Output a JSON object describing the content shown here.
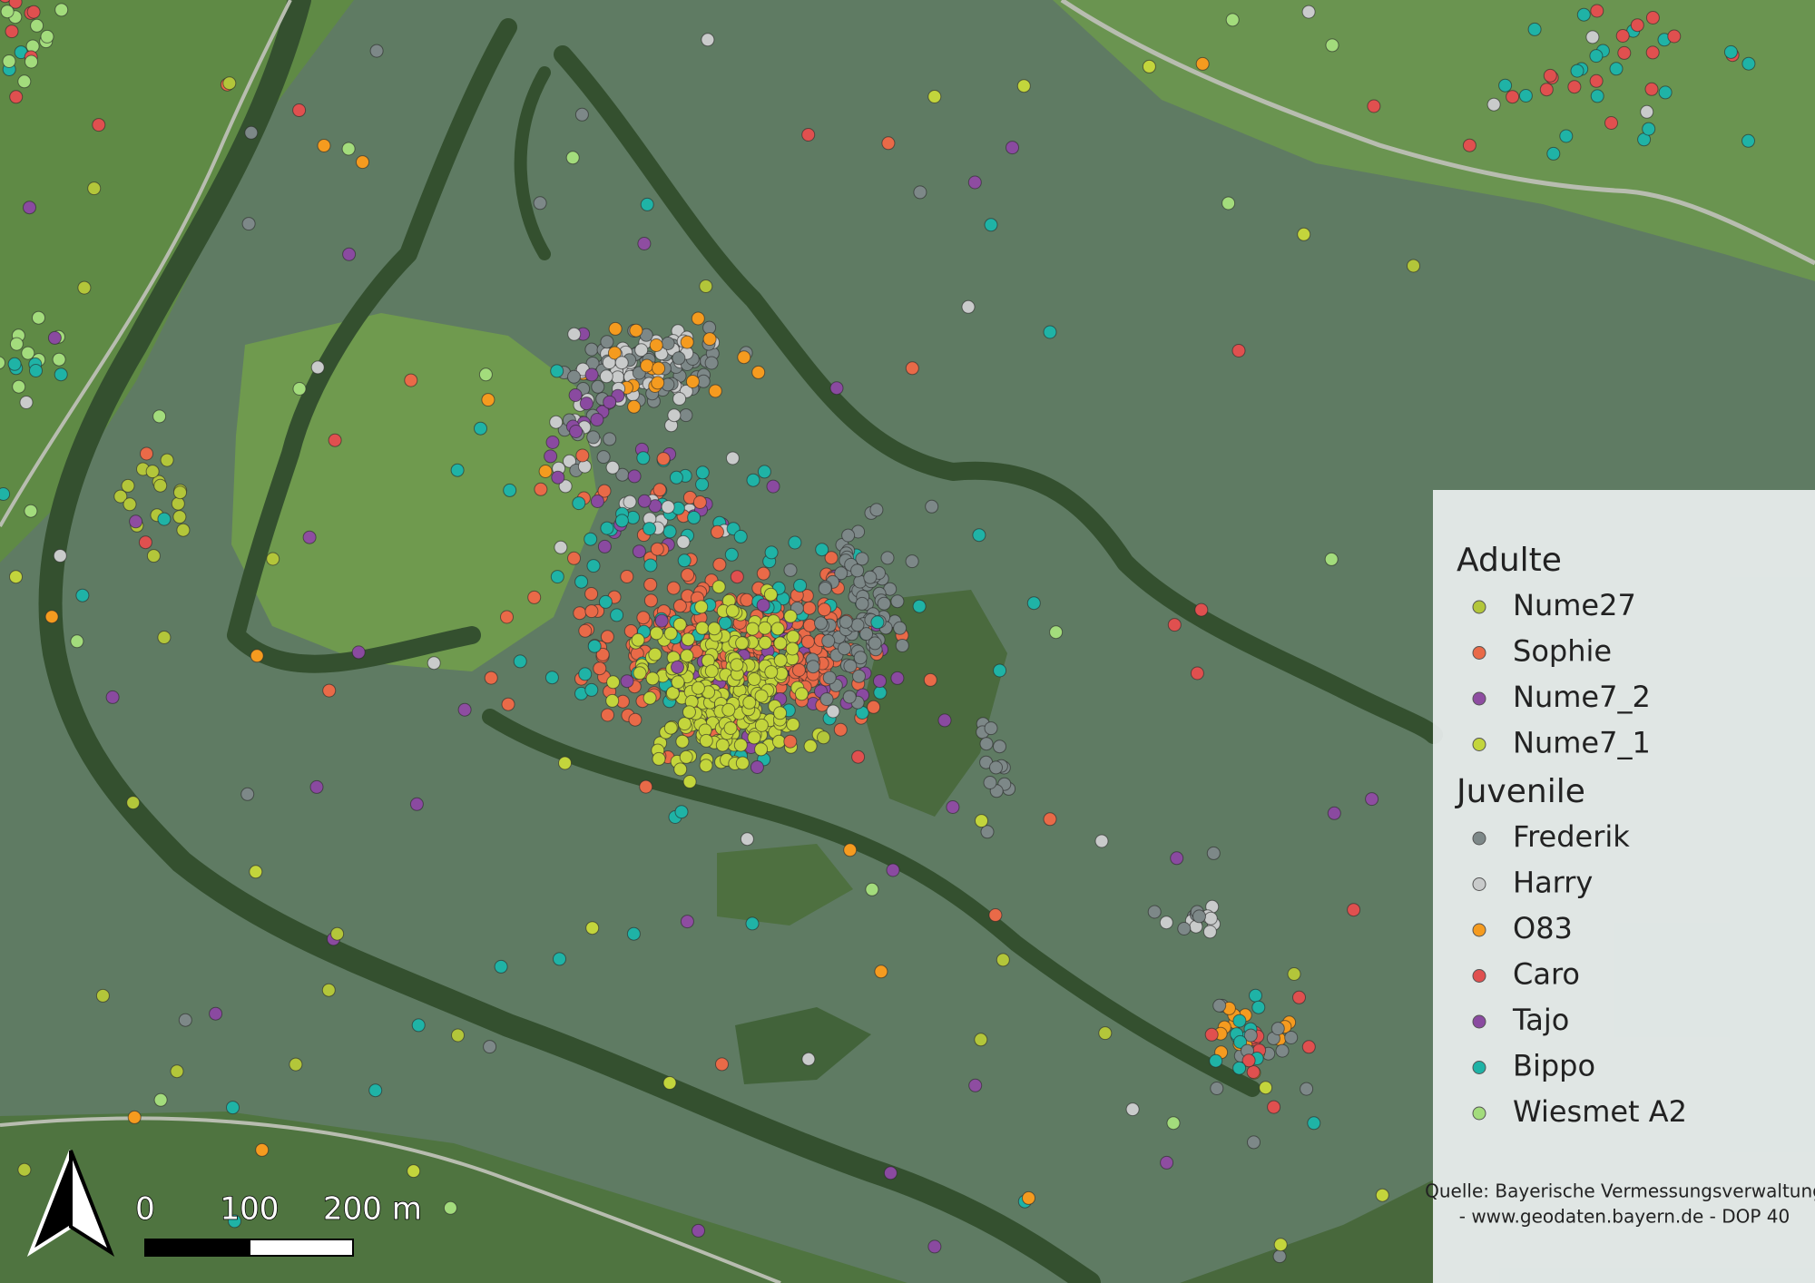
{
  "legend": {
    "groups": [
      {
        "title": "Adulte",
        "items": [
          {
            "name": "Nume27",
            "color": "#b3c63a"
          },
          {
            "name": "Sophie",
            "color": "#e96a48"
          },
          {
            "name": "Nume7_2",
            "color": "#8e4da1"
          },
          {
            "name": "Nume7_1",
            "color": "#c3d53c"
          }
        ]
      },
      {
        "title": "Juvenile",
        "items": [
          {
            "name": "Frederik",
            "color": "#7d8888"
          },
          {
            "name": "Harry",
            "color": "#c9cbcb"
          },
          {
            "name": "O83",
            "color": "#f59b1f"
          },
          {
            "name": "Caro",
            "color": "#e0504f"
          },
          {
            "name": "Tajo",
            "color": "#8a4aa0"
          },
          {
            "name": "Bippo",
            "color": "#1fb3a6"
          },
          {
            "name": "Wiesmet A2",
            "color": "#a3dc7c"
          }
        ]
      }
    ]
  },
  "scale_bar": {
    "labels": [
      "0",
      "100",
      "200 m"
    ]
  },
  "source": {
    "lines": [
      "Quelle: Bayerische Vermessungsverwaltung",
      "- www.geodaten.bayern.de - DOP 40"
    ]
  }
}
